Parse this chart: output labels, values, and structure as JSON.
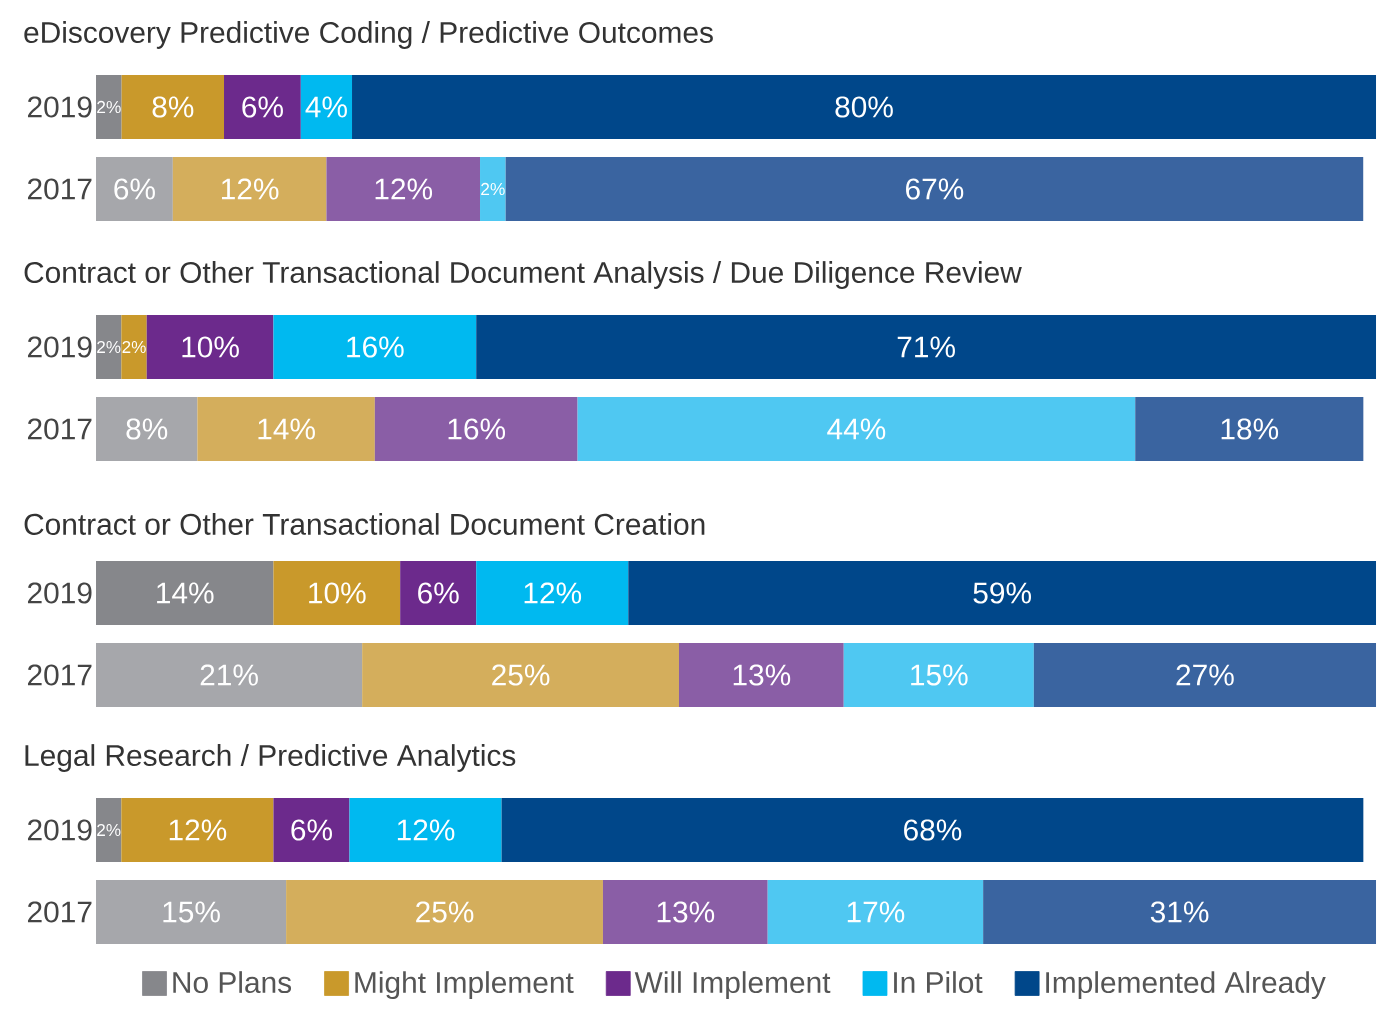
{
  "chart_data": [
    {
      "type": "bar",
      "orientation": "horizontal",
      "stacked": true,
      "title": "eDiscovery Predictive Coding / Predictive Outcomes",
      "categories": [
        "2019",
        "2017"
      ],
      "xlim": [
        0,
        100
      ],
      "tick_labels": "y",
      "legend": false,
      "series": [
        {
          "color": "#86878b",
          "colors": [
            "#86878b",
            "#a6a7ab"
          ],
          "values": [
            2,
            6
          ],
          "value_labels": [
            "2%",
            "6%"
          ]
        },
        {
          "color": "#c9992b",
          "colors": [
            "#c9992b",
            "#d4ae5c"
          ],
          "values": [
            8,
            12
          ],
          "value_labels": [
            "8%",
            "12%"
          ]
        },
        {
          "color": "#6c2a8c",
          "colors": [
            "#6c2a8c",
            "#8a5ea6"
          ],
          "values": [
            6,
            12
          ],
          "value_labels": [
            "6%",
            "12%"
          ]
        },
        {
          "color": "#00b9f0",
          "colors": [
            "#00b9f0",
            "#4fc8f2"
          ],
          "values": [
            4,
            2
          ],
          "value_labels": [
            "4%",
            "2%"
          ]
        },
        {
          "color": "#00478a",
          "colors": [
            "#00478a",
            "#3a64a0"
          ],
          "values": [
            80,
            67
          ],
          "value_labels": [
            "80%",
            "67%"
          ]
        }
      ]
    },
    {
      "type": "bar",
      "orientation": "horizontal",
      "stacked": true,
      "title": "Contract or Other Transactional Document Analysis / Due Diligence Review",
      "categories": [
        "2019",
        "2017"
      ],
      "xlim": [
        0,
        101
      ],
      "tick_labels": "y",
      "legend": false,
      "series": [
        {
          "color": "#86878b",
          "colors": [
            "#86878b",
            "#a6a7ab"
          ],
          "values": [
            2,
            8
          ],
          "value_labels": [
            "2%",
            "8%"
          ]
        },
        {
          "color": "#c9992b",
          "colors": [
            "#c9992b",
            "#d4ae5c"
          ],
          "values": [
            2,
            14
          ],
          "value_labels": [
            "2%",
            "14%"
          ]
        },
        {
          "color": "#6c2a8c",
          "colors": [
            "#6c2a8c",
            "#8a5ea6"
          ],
          "values": [
            10,
            16
          ],
          "value_labels": [
            "10%",
            "16%"
          ]
        },
        {
          "color": "#00b9f0",
          "colors": [
            "#00b9f0",
            "#4fc8f2"
          ],
          "values": [
            16,
            44
          ],
          "value_labels": [
            "16%",
            "44%"
          ]
        },
        {
          "color": "#00478a",
          "colors": [
            "#00478a",
            "#3a64a0"
          ],
          "values": [
            71,
            18
          ],
          "value_labels": [
            "71%",
            "18%"
          ]
        }
      ]
    },
    {
      "type": "bar",
      "orientation": "horizontal",
      "stacked": true,
      "title": "Contract or Other Transactional Document Creation",
      "categories": [
        "2019",
        "2017"
      ],
      "xlim": [
        0,
        101
      ],
      "tick_labels": "y",
      "legend": false,
      "series": [
        {
          "color": "#86878b",
          "colors": [
            "#86878b",
            "#a6a7ab"
          ],
          "values": [
            14,
            21
          ],
          "value_labels": [
            "14%",
            "21%"
          ]
        },
        {
          "color": "#c9992b",
          "colors": [
            "#c9992b",
            "#d4ae5c"
          ],
          "values": [
            10,
            25
          ],
          "value_labels": [
            "10%",
            "25%"
          ]
        },
        {
          "color": "#6c2a8c",
          "colors": [
            "#6c2a8c",
            "#8a5ea6"
          ],
          "values": [
            6,
            13
          ],
          "value_labels": [
            "6%",
            "13%"
          ]
        },
        {
          "color": "#00b9f0",
          "colors": [
            "#00b9f0",
            "#4fc8f2"
          ],
          "values": [
            12,
            15
          ],
          "value_labels": [
            "12%",
            "15%"
          ]
        },
        {
          "color": "#00478a",
          "colors": [
            "#00478a",
            "#3a64a0"
          ],
          "values": [
            59,
            27
          ],
          "value_labels": [
            "59%",
            "27%"
          ]
        }
      ]
    },
    {
      "type": "bar",
      "orientation": "horizontal",
      "stacked": true,
      "title": "Legal Research / Predictive Analytics",
      "categories": [
        "2019",
        "2017"
      ],
      "xlim": [
        0,
        101
      ],
      "tick_labels": "y",
      "legend": "bottom",
      "series": [
        {
          "name": "No Plans",
          "color": "#86878b",
          "colors": [
            "#86878b",
            "#a6a7ab"
          ],
          "values": [
            2,
            15
          ],
          "value_labels": [
            "2%",
            "15%"
          ]
        },
        {
          "name": "Might Implement",
          "color": "#c9992b",
          "colors": [
            "#c9992b",
            "#d4ae5c"
          ],
          "values": [
            12,
            25
          ],
          "value_labels": [
            "12%",
            "25%"
          ]
        },
        {
          "name": "Will Implement",
          "color": "#6c2a8c",
          "colors": [
            "#6c2a8c",
            "#8a5ea6"
          ],
          "values": [
            6,
            13
          ],
          "value_labels": [
            "6%",
            "13%"
          ]
        },
        {
          "name": "In Pilot",
          "color": "#00b9f0",
          "colors": [
            "#00b9f0",
            "#4fc8f2"
          ],
          "values": [
            12,
            17
          ],
          "value_labels": [
            "12%",
            "17%"
          ]
        },
        {
          "name": "Implemented Already",
          "color": "#00478a",
          "colors": [
            "#00478a",
            "#3a64a0"
          ],
          "values": [
            68,
            31
          ],
          "value_labels": [
            "68%",
            "31%"
          ]
        }
      ]
    }
  ]
}
